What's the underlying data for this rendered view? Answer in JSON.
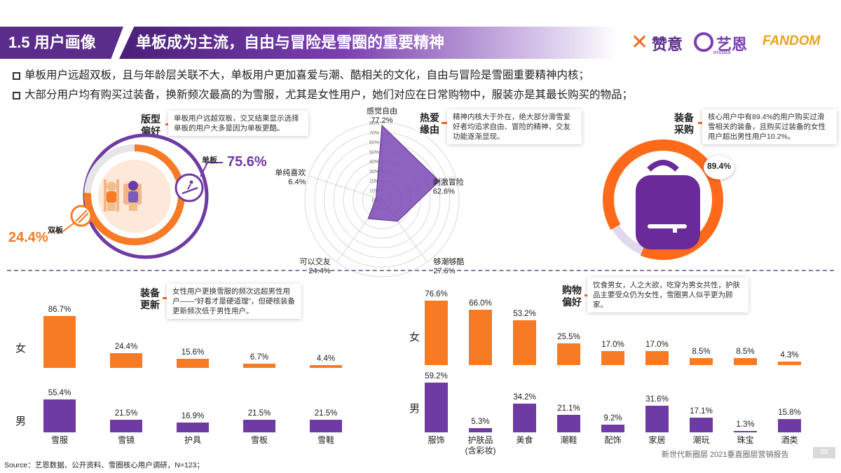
{
  "header": {
    "section": "1.5 用户画像",
    "title": "单板成为主流，自由与冒险是雪圈的重要精神"
  },
  "logos": {
    "zanyi": "赞意",
    "yien": "艺恩",
    "endata": "endata",
    "fandom": "FANDOM"
  },
  "bullets": [
    "单板用户远超双板，且与年龄层关联不大，单板用户更加喜爱与潮、酷相关的文化，自由与冒险是雪圈重要精神内核；",
    "大部分用户均有购买过装备，换新频次最高的为雪服，尤其是女性用户，她们对应在日常购物中，服装亦是其最长购买的物品；"
  ],
  "board": {
    "tag": "版型\n偏好",
    "note": "单板用户远超双板，交叉结果显示选择单板的用户大多是因为单板更酷。",
    "single_label": "单板",
    "single_value": "75.6%",
    "single_pct": 75.6,
    "double_label": "双板",
    "double_value": "24.4%",
    "double_pct": 24.4
  },
  "love": {
    "tag": "热爱\n缘由",
    "note": "精神内核大于外在，绝大部分滑雪爱好者均追求自由、冒险的精神，交友功能逐渐显现。",
    "axes": [
      {
        "name": "感觉自由",
        "value": "77.2%",
        "v": 77.2
      },
      {
        "name": "刺激冒险",
        "value": "62.6%",
        "v": 62.6
      },
      {
        "name": "够潮够酷",
        "value": "27.6%",
        "v": 27.6
      },
      {
        "name": "可以交友",
        "value": "24.4%",
        "v": 24.4
      },
      {
        "name": "单纯喜欢",
        "value": "6.4%",
        "v": 6.4
      }
    ],
    "ticks": [
      "0%",
      "10%",
      "20%",
      "30%",
      "40%",
      "50%",
      "60%",
      "70%",
      "80%"
    ]
  },
  "gear": {
    "tag": "装备\n采购",
    "note": "核心用户中有89.4%的用户购买过滑雪相关的装备，且购买过装备的女性用户超出男性用户10.2%。",
    "value": "89.4%",
    "pct": 89.4
  },
  "update": {
    "tag": "装备\n更新",
    "note": "女性用户更换雪服的频次远超男性用户——“好看才是硬道理”，但硬核装备更新频次低于男性用户。",
    "female_label": "女",
    "male_label": "男",
    "categories": [
      "雪服",
      "雪镜",
      "护具",
      "雪板",
      "雪鞋"
    ],
    "female": [
      86.7,
      24.4,
      15.6,
      6.7,
      4.4
    ],
    "female_labels": [
      "86.7%",
      "24.4%",
      "15.6%",
      "6.7%",
      "4.4%"
    ],
    "male": [
      55.4,
      21.5,
      16.9,
      21.5,
      21.5
    ],
    "male_labels": [
      "55.4%",
      "21.5%",
      "16.9%",
      "21.5%",
      "21.5%"
    ]
  },
  "shopping": {
    "tag": "购物\n偏好",
    "note": "饮食男女，人之大欲，吃穿为男女共性，护肤品主要受众仍为女性，雪圈男人似乎更为顾家。",
    "female_label": "女",
    "male_label": "男",
    "categories": [
      "服饰",
      "护肤品\n(含彩妆)",
      "美食",
      "潮鞋",
      "配饰",
      "家居",
      "潮玩",
      "珠宝",
      "酒类"
    ],
    "female": [
      76.6,
      66.0,
      53.2,
      25.5,
      17.0,
      17.0,
      8.5,
      8.5,
      4.3
    ],
    "female_labels": [
      "76.6%",
      "66.0%",
      "53.2%",
      "25.5%",
      "17.0%",
      "17.0%",
      "8.5%",
      "8.5%",
      "4.3%"
    ],
    "male": [
      59.2,
      5.3,
      34.2,
      21.1,
      9.2,
      31.6,
      17.1,
      1.3,
      15.8
    ],
    "male_labels": [
      "59.2%",
      "5.3%",
      "34.2%",
      "21.1%",
      "9.2%",
      "31.6%",
      "17.1%",
      "1.3%",
      "15.8%"
    ]
  },
  "colors": {
    "orange": "#f77a24",
    "purple": "#6e3ba4",
    "dark_purple": "#5b2d8a"
  },
  "source": "Source：艺恩数据、公开资料、雪圈核心用户调研，N=123；",
  "footer": "新世代新圈层 2021垂直圈层营销报告",
  "page": "08"
}
